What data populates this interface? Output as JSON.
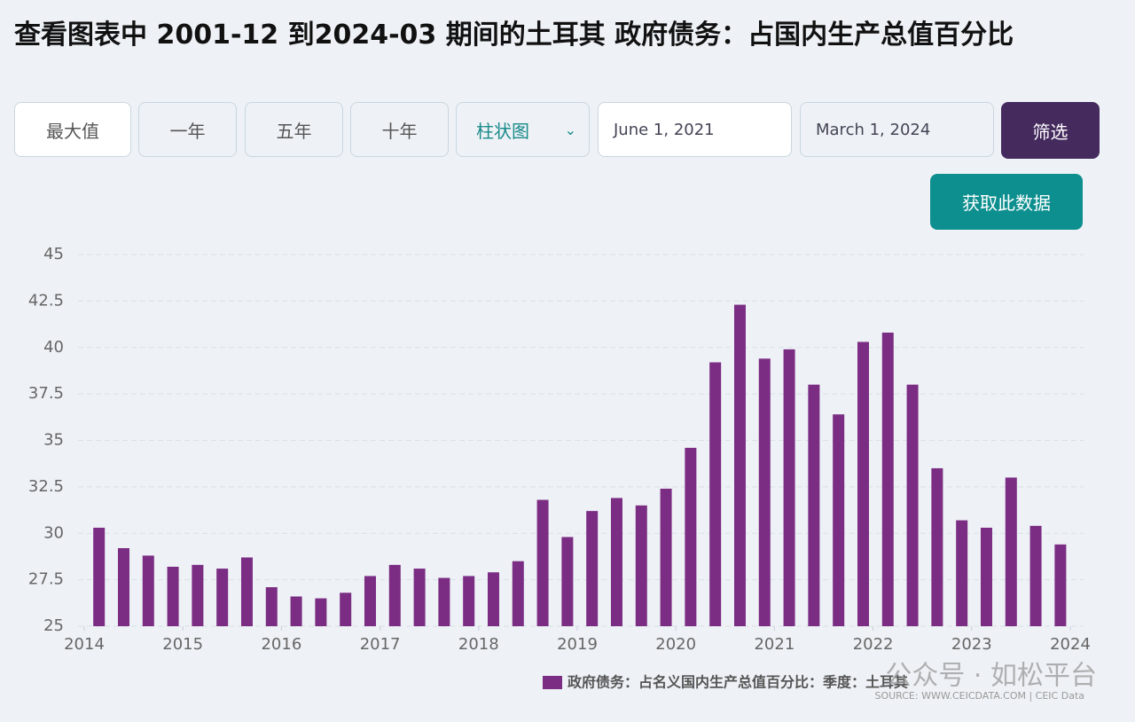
{
  "header": {
    "title": "查看图表中 2001-12 到2024-03 期间的土耳其 政府债务：占国内生产总值百分比"
  },
  "controls": {
    "ranges": [
      "最大值",
      "一年",
      "五年",
      "十年"
    ],
    "chart_type": "柱状图",
    "start_date": "June 1, 2021",
    "end_date": "March 1, 2024",
    "filter": "筛选",
    "get_data": "获取此数据"
  },
  "chart_data": {
    "type": "bar",
    "x": [
      2014.15,
      2014.4,
      2014.65,
      2014.9,
      2015.15,
      2015.4,
      2015.65,
      2015.9,
      2016.15,
      2016.4,
      2016.65,
      2016.9,
      2017.15,
      2017.4,
      2017.65,
      2017.9,
      2018.15,
      2018.4,
      2018.65,
      2018.9,
      2019.15,
      2019.4,
      2019.65,
      2019.9,
      2020.15,
      2020.4,
      2020.65,
      2020.9,
      2021.15,
      2021.4,
      2021.65,
      2021.9,
      2022.15,
      2022.4,
      2022.65,
      2022.9,
      2023.15,
      2023.4,
      2023.65,
      2023.9
    ],
    "series": [
      {
        "name": "政府债务：占名义国内生产总值百分比：季度：土耳其",
        "color": "#7b2d83",
        "values": [
          30.3,
          29.2,
          28.8,
          28.2,
          28.3,
          28.1,
          28.7,
          27.1,
          26.6,
          26.5,
          26.8,
          27.7,
          28.3,
          28.1,
          27.6,
          27.7,
          27.9,
          28.5,
          31.8,
          29.8,
          31.2,
          31.9,
          31.5,
          32.4,
          34.6,
          39.2,
          42.3,
          39.4,
          39.9,
          38.0,
          36.4,
          40.3,
          40.8,
          38.0,
          33.5,
          30.7,
          30.3,
          33.0,
          30.4,
          29.4
        ]
      }
    ],
    "xlim": [
      2014,
      2024
    ],
    "xticks": [
      2014,
      2015,
      2016,
      2017,
      2018,
      2019,
      2020,
      2021,
      2022,
      2023,
      2024
    ],
    "ylim": [
      25,
      45
    ],
    "yticks": [
      25,
      27.5,
      30,
      32.5,
      35,
      37.5,
      40,
      42.5,
      45
    ],
    "grid": true,
    "source": "SOURCE: WWW.CEICDATA.COM | CEIC Data",
    "watermark": "公众号 · 如松平台"
  }
}
